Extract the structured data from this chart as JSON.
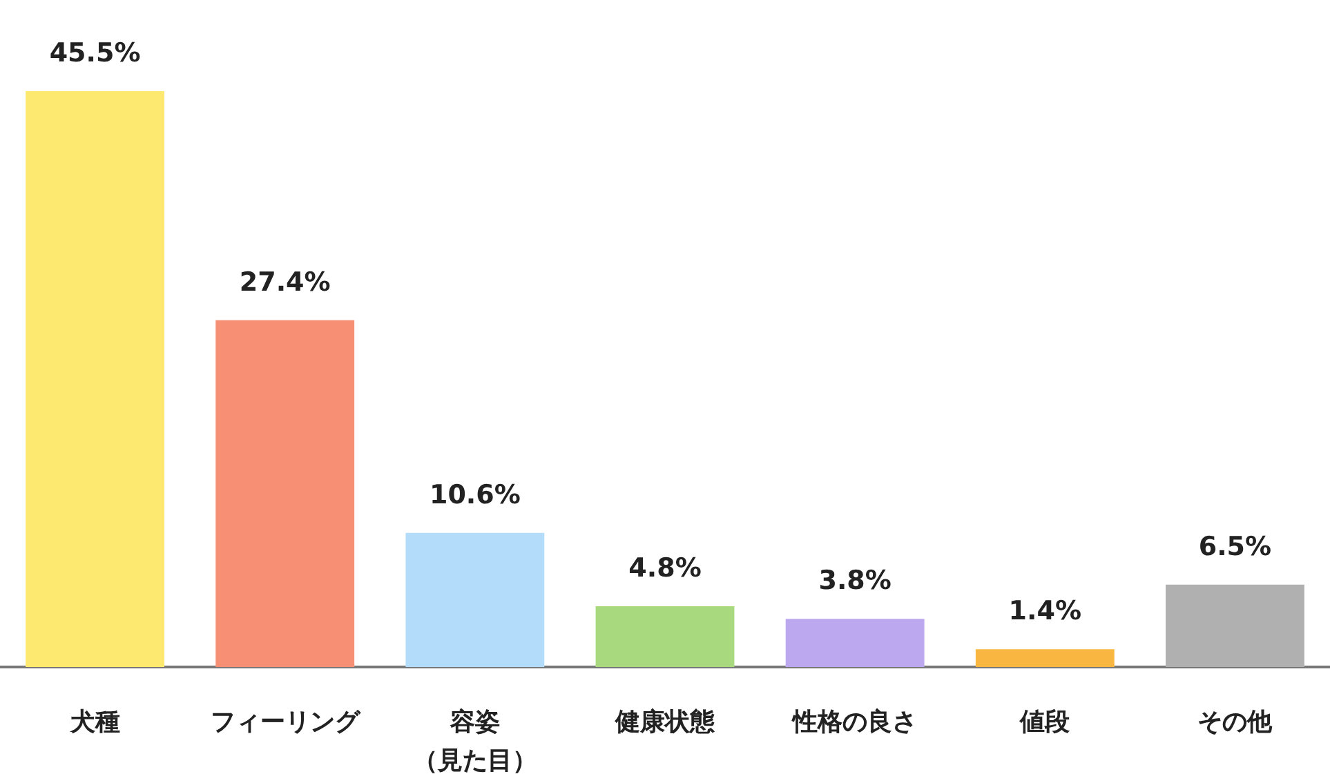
{
  "chart_data": {
    "type": "bar",
    "categories": [
      "犬種",
      "フィーリング",
      "容姿（見た目）",
      "健康状態",
      "性格の良さ",
      "値段",
      "その他"
    ],
    "values": [
      45.5,
      27.4,
      10.6,
      4.8,
      3.8,
      1.4,
      6.5
    ],
    "colors": [
      "#fde870",
      "#f78f74",
      "#b3dcfb",
      "#a8d97f",
      "#bba8ee",
      "#f9b640",
      "#b0b0b0"
    ],
    "value_labels": [
      "45.5%",
      "27.4%",
      "10.6%",
      "4.8%",
      "3.8%",
      "1.4%",
      "6.5%"
    ],
    "grid": false
  }
}
